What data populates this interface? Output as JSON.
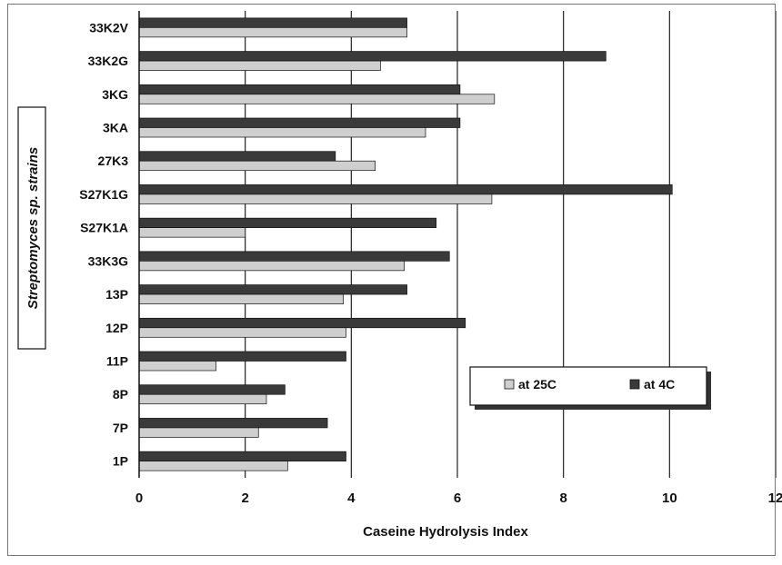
{
  "chart_data": {
    "type": "bar",
    "orientation": "horizontal",
    "categories": [
      "33K2V",
      "33K2G",
      "3KG",
      "3KA",
      "27K3",
      "S27K1G",
      "S27K1A",
      "33K3G",
      "13P",
      "12P",
      "11P",
      "8P",
      "7P",
      "1P"
    ],
    "series": [
      {
        "name": "at 4C",
        "color": "#3a3a3a",
        "values": [
          5.05,
          8.8,
          6.05,
          6.05,
          3.7,
          10.05,
          5.6,
          5.85,
          5.05,
          6.15,
          3.9,
          2.75,
          3.55,
          3.9
        ]
      },
      {
        "name": "at 25C",
        "color": "#cfcfcf",
        "values": [
          5.05,
          4.55,
          6.7,
          5.4,
          4.45,
          6.65,
          2.0,
          5.0,
          3.85,
          3.9,
          1.45,
          2.4,
          2.25,
          2.8
        ]
      }
    ],
    "legend_order": [
      "at 25C",
      "at 4C"
    ],
    "legend_position": "lower-right inside plot",
    "xlabel": "Caseine Hydrolysis Index",
    "ylabel": "Streptomyces sp. strains",
    "xlim": [
      0,
      12
    ],
    "xticks": [
      "0",
      "2",
      "4",
      "6",
      "8",
      "10",
      "12"
    ],
    "grid": "vertical"
  }
}
